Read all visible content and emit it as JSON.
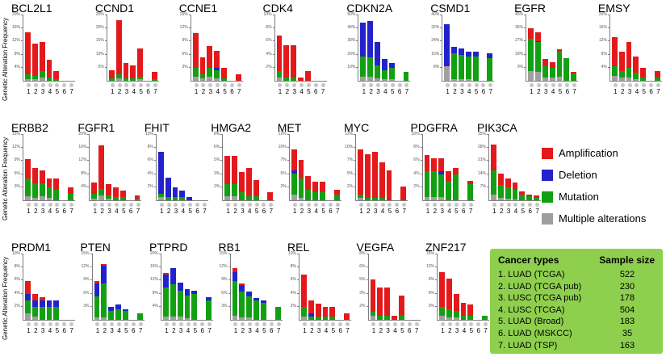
{
  "ylabel": "Genetic Alteration Frequency",
  "colors": {
    "amplification": "#e3191c",
    "deletion": "#2222cc",
    "mutation": "#12a012",
    "multiple": "#9f9f9f",
    "table_bg": "#8ed04e",
    "study_dot": "#c6c6c6"
  },
  "legend": {
    "items": [
      {
        "key": "amplification",
        "label": "Amplification"
      },
      {
        "key": "deletion",
        "label": "Deletion"
      },
      {
        "key": "mutation",
        "label": "Mutation"
      },
      {
        "key": "multiple",
        "label": "Multiple alterations"
      }
    ]
  },
  "table": {
    "col1": "Cancer types",
    "col2": "Sample size",
    "rows": [
      {
        "name": "1. LUAD (TCGA)",
        "size": "522"
      },
      {
        "name": "2. LUAD (TCGA pub)",
        "size": "230"
      },
      {
        "name": "3. LUSC (TCGA pub)",
        "size": "178"
      },
      {
        "name": "4. LUSC (TCGA)",
        "size": "504"
      },
      {
        "name": "5. LUAD (Broad)",
        "size": "183"
      },
      {
        "name": "6. LUAD  (MSKCC)",
        "size": "35"
      },
      {
        "name": "7. LUAD  (TSP)",
        "size": "163"
      }
    ]
  },
  "chart_data": {
    "type": "bar",
    "stacked": true,
    "unit": "%",
    "ylabel": "Genetic Alteration Frequency",
    "x_categories": [
      "1",
      "2",
      "3",
      "4",
      "5",
      "6",
      "7"
    ],
    "x_category_meaning": "Cancer types listed in the green table (1. LUAD TCGA ... 7. LUAD TSP)",
    "series_keys": [
      "multiple",
      "mutation",
      "deletion",
      "amplification"
    ],
    "genes": [
      {
        "name": "BCL2L1",
        "row": 0,
        "ylim": 20,
        "series": {
          "amplification": [
            13,
            10,
            9,
            5.5,
            2.5,
            0,
            0
          ],
          "mutation": [
            1.5,
            1,
            2,
            1,
            0.5,
            0,
            0
          ],
          "multiple": [
            0.5,
            0.5,
            1,
            0,
            0,
            0,
            0
          ]
        }
      },
      {
        "name": "CCND1",
        "row": 0,
        "ylim": 25,
        "series": {
          "amplification": [
            3,
            21,
            6,
            5,
            11,
            0,
            3
          ],
          "mutation": [
            1,
            1.5,
            1,
            1,
            1,
            0,
            0.5
          ],
          "multiple": [
            0,
            1,
            0,
            0,
            0.5,
            0,
            0
          ]
        }
      },
      {
        "name": "CCNE1",
        "row": 0,
        "ylim": 15,
        "series": {
          "amplification": [
            8,
            4,
            5,
            4,
            2.5,
            0,
            1.5
          ],
          "mutation": [
            2,
            1,
            2,
            2,
            0.5,
            0,
            0
          ],
          "deletion": [
            0,
            0,
            0,
            0.5,
            0,
            0,
            0
          ],
          "multiple": [
            1,
            0.5,
            1,
            0.5,
            0,
            0,
            0
          ]
        }
      },
      {
        "name": "CDK4",
        "row": 0,
        "ylim": 10,
        "series": {
          "amplification": [
            5.5,
            5,
            5,
            0.5,
            1.5,
            0,
            0
          ],
          "mutation": [
            1,
            0.5,
            0.5,
            0,
            0,
            0,
            0
          ],
          "multiple": [
            0.5,
            0,
            0,
            0,
            0,
            0,
            0
          ]
        }
      },
      {
        "name": "CDKN2A",
        "row": 0,
        "ylim": 50,
        "series": {
          "mutation": [
            16,
            15,
            10,
            7,
            9,
            0,
            7
          ],
          "deletion": [
            26,
            28,
            18,
            9,
            4,
            0,
            0
          ],
          "multiple": [
            3,
            3,
            2,
            1,
            1,
            0,
            0
          ]
        }
      },
      {
        "name": "CSMD1",
        "row": 0,
        "ylim": 40,
        "series": {
          "mutation": [
            0,
            16,
            15,
            14,
            15,
            0,
            14
          ],
          "deletion": [
            26,
            4,
            4,
            3,
            3,
            0,
            3
          ],
          "multiple": [
            9,
            1,
            1,
            1,
            0,
            0,
            0
          ]
        }
      },
      {
        "name": "EGFR",
        "row": 0,
        "ylim": 45,
        "series": {
          "mutation": [
            22,
            21,
            8,
            7,
            17,
            16,
            5
          ],
          "amplification": [
            7,
            6,
            5,
            4,
            2,
            0,
            1
          ],
          "deletion": [
            0.5,
            0.5,
            0,
            0,
            0,
            0,
            0
          ],
          "multiple": [
            7,
            6,
            2,
            2,
            3,
            0,
            0
          ]
        }
      },
      {
        "name": "EMSY",
        "row": 0,
        "ylim": 20,
        "series": {
          "amplification": [
            9,
            6,
            8,
            5,
            3,
            0,
            2
          ],
          "mutation": [
            3,
            2,
            3,
            2,
            1,
            0,
            1
          ],
          "multiple": [
            1.5,
            1,
            1,
            0.5,
            0,
            0,
            0
          ]
        }
      },
      {
        "name": "ERBB2",
        "row": 1,
        "ylim": 15,
        "series": {
          "amplification": [
            4.5,
            3.5,
            3,
            2,
            2.5,
            0,
            1.5
          ],
          "mutation": [
            4,
            3.5,
            3,
            2.5,
            2.5,
            0,
            1.5
          ],
          "multiple": [
            1,
            0.5,
            1,
            0.5,
            0,
            0,
            0
          ]
        }
      },
      {
        "name": "FGFR1",
        "row": 1,
        "ylim": 20,
        "series": {
          "amplification": [
            3.5,
            13.5,
            3.5,
            3,
            2,
            0,
            1
          ],
          "mutation": [
            1.5,
            2,
            1,
            1,
            1,
            0,
            0.5
          ],
          "multiple": [
            0.5,
            1.5,
            0.5,
            0,
            0,
            0,
            0
          ]
        }
      },
      {
        "name": "FHIT",
        "row": 1,
        "ylim": 10,
        "series": {
          "deletion": [
            6.5,
            3,
            1.5,
            1,
            0.5,
            0,
            0
          ],
          "mutation": [
            0.5,
            0.5,
            0.5,
            0.5,
            0,
            0,
            0
          ],
          "multiple": [
            0.5,
            0,
            0,
            0,
            0,
            0,
            0
          ]
        }
      },
      {
        "name": "HMGA2",
        "row": 1,
        "ylim": 8,
        "series": {
          "amplification": [
            3.5,
            3.5,
            2.5,
            3.5,
            2,
            0,
            1
          ],
          "mutation": [
            1.5,
            1.5,
            1,
            0.5,
            0.5,
            0,
            0
          ],
          "multiple": [
            0.5,
            0.5,
            0,
            0,
            0,
            0,
            0
          ]
        }
      },
      {
        "name": "MET",
        "row": 1,
        "ylim": 12,
        "series": {
          "amplification": [
            4,
            3.5,
            2.5,
            2,
            2,
            0,
            1
          ],
          "mutation": [
            4,
            3.5,
            2,
            1.5,
            1.5,
            0,
            1
          ],
          "deletion": [
            0.5,
            0,
            0,
            0,
            0,
            0,
            0
          ],
          "multiple": [
            1,
            0.5,
            0,
            0,
            0,
            0,
            0
          ]
        }
      },
      {
        "name": "MYC",
        "row": 1,
        "ylim": 12,
        "series": {
          "amplification": [
            8.5,
            8,
            8.5,
            6.5,
            5.5,
            0,
            2.5
          ],
          "mutation": [
            0.5,
            0.5,
            0.5,
            0.5,
            0,
            0,
            0
          ],
          "multiple": [
            0.5,
            0,
            0,
            0,
            0,
            0,
            0
          ]
        }
      },
      {
        "name": "PDGFRA",
        "row": 1,
        "ylim": 10,
        "series": {
          "mutation": [
            4,
            4,
            3.5,
            3,
            4,
            0,
            2.5
          ],
          "amplification": [
            2.5,
            2,
            2,
            1.5,
            1,
            0,
            0.5
          ],
          "deletion": [
            0,
            0,
            0.5,
            0,
            0,
            0,
            0
          ],
          "multiple": [
            0.5,
            0.5,
            0.5,
            0,
            0,
            0,
            0
          ]
        }
      },
      {
        "name": "PIK3CA",
        "row": 1,
        "ylim": 35,
        "series": {
          "amplification": [
            14,
            6,
            5,
            4,
            2,
            1,
            1
          ],
          "mutation": [
            13,
            7,
            6,
            5,
            3,
            2,
            1.5
          ],
          "multiple": [
            3,
            1.5,
            1,
            0.5,
            0,
            0,
            0
          ]
        }
      },
      {
        "name": "PRDM1",
        "row": 2,
        "ylim": 10,
        "series": {
          "amplification": [
            2,
            1,
            0.5,
            0,
            0,
            0,
            0
          ],
          "deletion": [
            1,
            1,
            1,
            1,
            1,
            0,
            0
          ],
          "mutation": [
            2,
            1.5,
            2,
            2,
            2,
            0,
            0
          ],
          "multiple": [
            1,
            0.5,
            0,
            0,
            0,
            0,
            0
          ]
        }
      },
      {
        "name": "PTEN",
        "row": 2,
        "ylim": 15,
        "series": {
          "mutation": [
            5,
            8,
            2,
            2.5,
            2,
            0,
            1.5
          ],
          "deletion": [
            3,
            4,
            1,
            1,
            0.5,
            0,
            0
          ],
          "amplification": [
            0.5,
            0.5,
            0,
            0,
            0,
            0,
            0
          ],
          "multiple": [
            0.5,
            0.5,
            0,
            0,
            0,
            0,
            0
          ]
        }
      },
      {
        "name": "PTPRD",
        "row": 2,
        "ylim": 20,
        "series": {
          "mutation": [
            9,
            10,
            8,
            7,
            8,
            0,
            6
          ],
          "deletion": [
            4,
            5,
            2.5,
            2,
            1,
            0,
            1
          ],
          "amplification": [
            0.5,
            0,
            0,
            0,
            0,
            0,
            0
          ],
          "multiple": [
            1,
            1,
            1,
            0.5,
            0,
            0,
            0
          ]
        }
      },
      {
        "name": "RB1",
        "row": 2,
        "ylim": 15,
        "series": {
          "mutation": [
            8,
            6,
            5,
            4.5,
            4,
            0,
            3
          ],
          "deletion": [
            2,
            1.5,
            1,
            0.5,
            0.5,
            0,
            0
          ],
          "amplification": [
            1,
            0.5,
            0,
            0,
            0,
            0,
            0
          ],
          "multiple": [
            1,
            0.5,
            0.5,
            0,
            0,
            0,
            0
          ]
        }
      },
      {
        "name": "REL",
        "row": 2,
        "ylim": 10,
        "series": {
          "amplification": [
            5,
            2,
            2,
            1.5,
            1.5,
            0,
            1
          ],
          "mutation": [
            1.5,
            0.5,
            0.5,
            0.5,
            0.5,
            0,
            0
          ],
          "deletion": [
            0,
            0.5,
            0,
            0,
            0,
            0,
            0
          ],
          "multiple": [
            0.5,
            0,
            0,
            0,
            0,
            0,
            0
          ]
        }
      },
      {
        "name": "VEGFA",
        "row": 2,
        "ylim": 8,
        "series": {
          "amplification": [
            4,
            3.5,
            3.5,
            0.5,
            2.5,
            0,
            0
          ],
          "mutation": [
            0.5,
            0.5,
            0.5,
            0,
            0.5,
            0,
            0
          ],
          "multiple": [
            0.5,
            0,
            0,
            0,
            0,
            0,
            0
          ]
        }
      },
      {
        "name": "ZNF217",
        "row": 2,
        "ylim": 15,
        "series": {
          "amplification": [
            8,
            7,
            4,
            3,
            2.5,
            0,
            0
          ],
          "mutation": [
            2,
            2,
            1.5,
            1,
            1,
            0,
            1
          ],
          "multiple": [
            1,
            0.5,
            0.5,
            0,
            0,
            0,
            0
          ]
        }
      }
    ]
  }
}
